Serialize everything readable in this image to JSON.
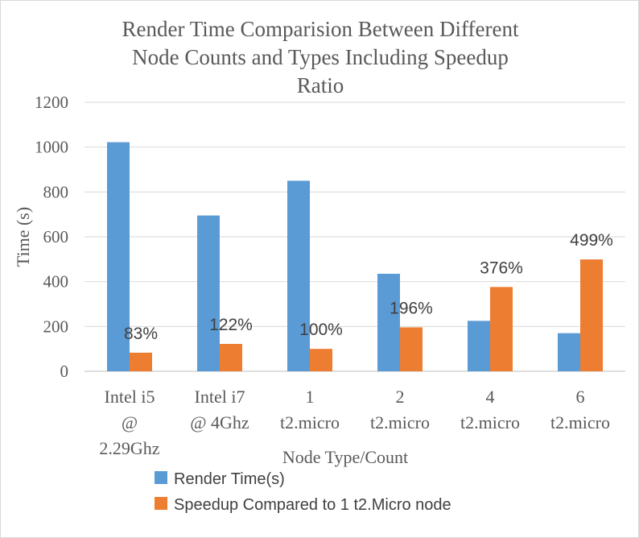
{
  "chart_data": {
    "type": "bar",
    "title_lines": [
      "Render Time Comparision Between Different",
      "Node Counts and Types Including Speedup",
      "Ratio"
    ],
    "xlabel": "Node Type/Count",
    "ylabel": "Time (s)",
    "ylim": [
      0,
      1200
    ],
    "yticks": [
      "0",
      "200",
      "400",
      "600",
      "800",
      "1000",
      "1200"
    ],
    "grid": true,
    "legend_position": "bottom",
    "categories": [
      [
        "Intel i5",
        "@",
        "2.29Ghz"
      ],
      [
        "Intel i7",
        "@ 4Ghz"
      ],
      [
        "1",
        "t2.micro"
      ],
      [
        "2",
        "t2.micro"
      ],
      [
        "4",
        "t2.micro"
      ],
      [
        "6",
        "t2.micro"
      ]
    ],
    "series": [
      {
        "name": "Render Time(s)",
        "color": "#5b9bd5",
        "values": [
          1022,
          695,
          850,
          435,
          225,
          170
        ]
      },
      {
        "name": "Speedup Compared to 1 t2.Micro node",
        "color": "#ed7d31",
        "values": [
          83,
          122,
          100,
          196,
          376,
          499
        ],
        "data_labels": [
          "83%",
          "122%",
          "100%",
          "196%",
          "376%",
          "499%"
        ]
      }
    ]
  }
}
